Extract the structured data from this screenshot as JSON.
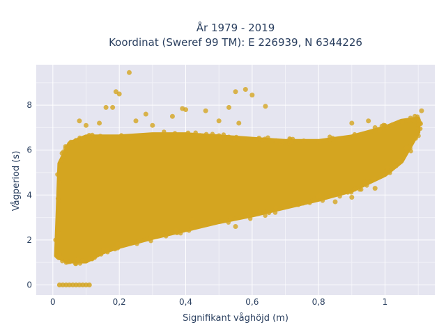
{
  "chart_data": {
    "type": "scatter",
    "title_line1": "År 1979 - 2019",
    "title_line2": "Koordinat (Sweref 99 TM): E 226939, N 6344226",
    "xlabel": "Signifikant våghöjd (m)",
    "ylabel": "Vågperiod (s)",
    "xlim": [
      -0.05,
      1.15
    ],
    "ylim": [
      -0.45,
      9.8
    ],
    "x_ticks": [
      0,
      0.2,
      0.4,
      0.6,
      0.8,
      1
    ],
    "x_tick_labels": [
      "0",
      "0,2",
      "0,4",
      "0,6",
      "0,8",
      "1"
    ],
    "y_ticks": [
      0,
      2,
      4,
      6,
      8
    ],
    "y_tick_labels": [
      "0",
      "2",
      "4",
      "6",
      "8"
    ],
    "grid": true,
    "legend": "none",
    "marker_color": "#D4A520",
    "plot_background": "#E5E5F0",
    "series": [
      {
        "points_outline": [
          [
            0.01,
            1.3
          ],
          [
            0.02,
            1.2
          ],
          [
            0.05,
            1.05
          ],
          [
            0.1,
            1.05
          ],
          [
            0.15,
            1.45
          ],
          [
            0.2,
            1.7
          ],
          [
            0.3,
            2.1
          ],
          [
            0.4,
            2.45
          ],
          [
            0.5,
            2.8
          ],
          [
            0.6,
            3.1
          ],
          [
            0.7,
            3.45
          ],
          [
            0.8,
            3.8
          ],
          [
            0.9,
            4.2
          ],
          [
            1.0,
            4.9
          ],
          [
            1.05,
            5.5
          ],
          [
            1.1,
            6.8
          ],
          [
            1.1,
            7.4
          ],
          [
            1.05,
            7.3
          ],
          [
            1.0,
            7.0
          ],
          [
            0.9,
            6.6
          ],
          [
            0.8,
            6.4
          ],
          [
            0.7,
            6.4
          ],
          [
            0.6,
            6.5
          ],
          [
            0.5,
            6.6
          ],
          [
            0.4,
            6.7
          ],
          [
            0.3,
            6.7
          ],
          [
            0.2,
            6.6
          ],
          [
            0.1,
            6.6
          ],
          [
            0.05,
            6.3
          ],
          [
            0.02,
            5.4
          ]
        ],
        "zero_points": [
          [
            0.02,
            0
          ],
          [
            0.03,
            0
          ],
          [
            0.04,
            0
          ],
          [
            0.05,
            0
          ],
          [
            0.06,
            0
          ],
          [
            0.07,
            0
          ],
          [
            0.08,
            0
          ],
          [
            0.09,
            0
          ],
          [
            0.1,
            0
          ],
          [
            0.11,
            0
          ]
        ],
        "outliers": [
          [
            0.23,
            9.45
          ],
          [
            0.19,
            8.6
          ],
          [
            0.2,
            8.5
          ],
          [
            0.18,
            7.9
          ],
          [
            0.16,
            7.9
          ],
          [
            0.6,
            8.45
          ],
          [
            0.55,
            8.6
          ],
          [
            0.58,
            8.7
          ],
          [
            0.64,
            7.95
          ],
          [
            0.53,
            7.9
          ],
          [
            0.46,
            7.75
          ],
          [
            0.4,
            7.8
          ],
          [
            0.39,
            7.85
          ],
          [
            0.28,
            7.6
          ],
          [
            0.36,
            7.5
          ],
          [
            0.08,
            7.3
          ],
          [
            0.1,
            7.1
          ],
          [
            0.14,
            7.2
          ],
          [
            0.25,
            7.3
          ],
          [
            0.3,
            7.1
          ],
          [
            0.5,
            7.3
          ],
          [
            0.56,
            7.2
          ],
          [
            0.9,
            7.2
          ],
          [
            0.95,
            7.3
          ],
          [
            0.97,
            7.0
          ],
          [
            0.55,
            2.6
          ],
          [
            0.42,
            2.9
          ],
          [
            0.47,
            2.75
          ],
          [
            0.85,
            3.7
          ],
          [
            0.9,
            3.9
          ],
          [
            0.97,
            4.3
          ],
          [
            1.11,
            7.75
          ],
          [
            1.09,
            7.5
          ]
        ]
      }
    ]
  }
}
